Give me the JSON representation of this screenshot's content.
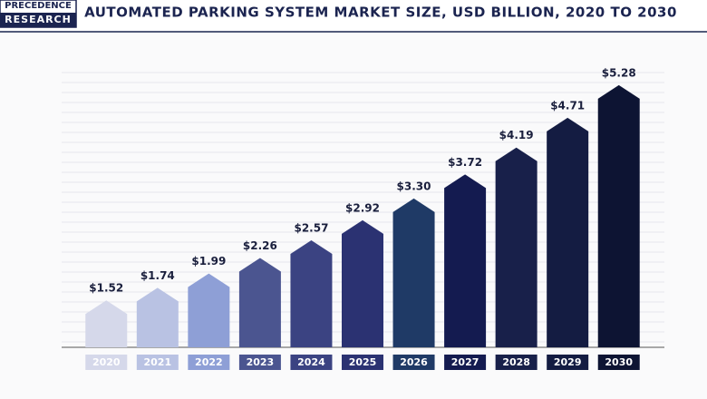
{
  "logo": {
    "line1": "PRECEDENCE",
    "line2": "RESEARCH"
  },
  "chart_data": {
    "type": "bar",
    "title": "AUTOMATED PARKING SYSTEM MARKET SIZE, USD BILLION, 2020 TO 2030",
    "categories": [
      "2020",
      "2021",
      "2022",
      "2023",
      "2024",
      "2025",
      "2026",
      "2027",
      "2028",
      "2029",
      "2030"
    ],
    "values": [
      1.52,
      1.74,
      1.99,
      2.26,
      2.57,
      2.92,
      3.3,
      3.72,
      4.19,
      4.71,
      5.28
    ],
    "value_labels": [
      "$1.52",
      "$1.74",
      "$1.99",
      "$2.26",
      "$2.57",
      "$2.92",
      "$3.30",
      "$3.72",
      "$4.19",
      "$4.71",
      "$5.28"
    ],
    "colors": [
      "#d5d8ea",
      "#b9c2e3",
      "#8e9fd6",
      "#4b5590",
      "#3b4382",
      "#2b3272",
      "#1f3a66",
      "#141b50",
      "#18204a",
      "#141c42",
      "#0d1433"
    ],
    "ylim": [
      0.7,
      5.5
    ]
  }
}
